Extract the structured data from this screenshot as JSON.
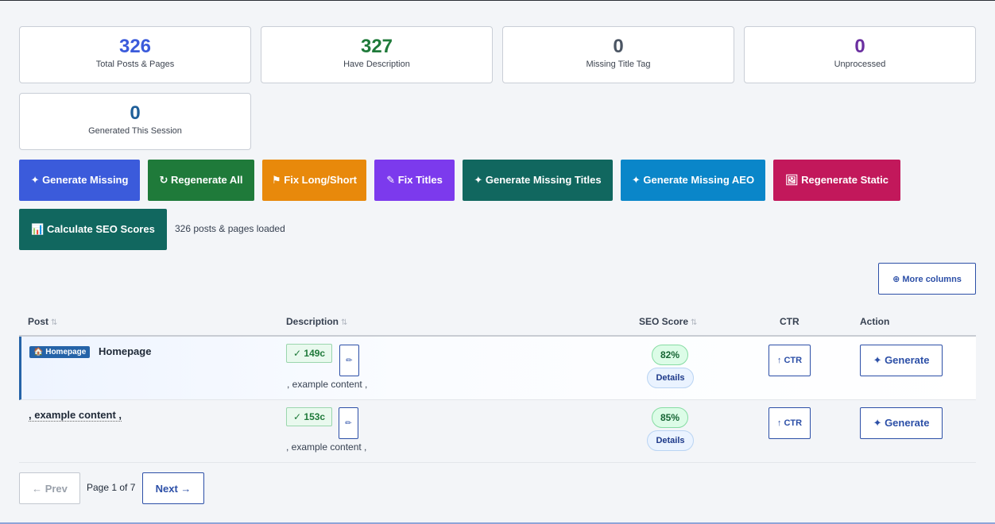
{
  "stats": [
    {
      "value": "326",
      "label": "Total Posts & Pages",
      "color": "#3b5bdb"
    },
    {
      "value": "327",
      "label": "Have Description",
      "color": "#1f7a3a"
    },
    {
      "value": "0",
      "label": "Missing Title Tag",
      "color": "#4b5563"
    },
    {
      "value": "0",
      "label": "Unprocessed",
      "color": "#6b2fa0"
    },
    {
      "value": "0",
      "label": "Generated This Session",
      "color": "#1f5f99"
    }
  ],
  "actions": [
    {
      "label": "✦ Generate Missing",
      "color": "#3b5bdb"
    },
    {
      "label": "↻ Regenerate All",
      "color": "#1f7a3a"
    },
    {
      "label": "⚑ Fix Long/Short",
      "color": "#e8890b"
    },
    {
      "label": "✎ Fix Titles",
      "color": "#7c3aed"
    },
    {
      "label": "✦ Generate Missing Titles",
      "color": "#11675f"
    },
    {
      "label": "✦ Generate Missing AEO",
      "color": "#0a86c9"
    },
    {
      "label": "🖼 Regenerate Static",
      "color": "#c2185b"
    },
    {
      "label": "📊 Calculate SEO Scores",
      "color": "#11675f"
    }
  ],
  "loaded_text": "326 posts & pages loaded",
  "more_columns": "⊕ More columns",
  "table": {
    "headers": {
      "post": "Post",
      "description": "Description",
      "seo_score": "SEO Score",
      "ctr": "CTR",
      "action": "Action"
    },
    "sort_icon": "⇅",
    "rows": [
      {
        "badge": "🏠 Homepage",
        "title": "Homepage",
        "length": "✓ 149c",
        "edit_icon": "✏",
        "description": ", example content ,",
        "score": "82%",
        "details": "Details",
        "ctr": "↑ CTR",
        "generate": "✦ Generate"
      },
      {
        "badge": "",
        "title": ", example content ,",
        "length": "✓ 153c",
        "edit_icon": "✏",
        "description": ", example content ,",
        "score": "85%",
        "details": "Details",
        "ctr": "↑ CTR",
        "generate": "✦ Generate"
      }
    ]
  },
  "pagination": {
    "prev": "← Prev",
    "info": "Page 1 of 7",
    "next": "Next →"
  }
}
